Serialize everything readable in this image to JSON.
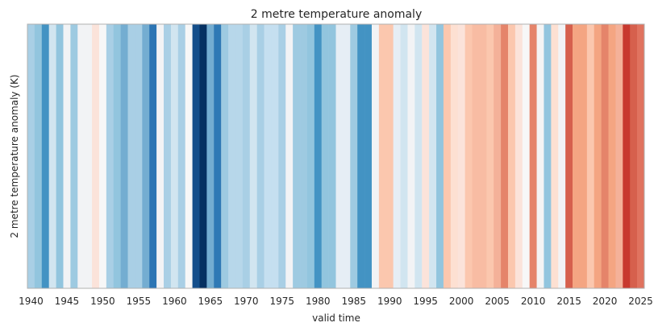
{
  "chart_data": {
    "type": "bar",
    "title": "2 metre temperature anomaly",
    "xlabel": "valid time",
    "ylabel": "2 metre temperature anomaly (K)",
    "xlim": [
      1940,
      2026
    ],
    "grid": false,
    "colormap": "RdBu_r (warming stripes)",
    "categories": [
      1940,
      1941,
      1942,
      1943,
      1944,
      1945,
      1946,
      1947,
      1948,
      1949,
      1950,
      1951,
      1952,
      1953,
      1954,
      1955,
      1956,
      1957,
      1958,
      1959,
      1960,
      1961,
      1962,
      1963,
      1964,
      1965,
      1966,
      1967,
      1968,
      1969,
      1970,
      1971,
      1972,
      1973,
      1974,
      1975,
      1976,
      1977,
      1978,
      1979,
      1980,
      1981,
      1982,
      1983,
      1984,
      1985,
      1986,
      1987,
      1988,
      1989,
      1990,
      1991,
      1992,
      1993,
      1994,
      1995,
      1996,
      1997,
      1998,
      1999,
      2000,
      2001,
      2002,
      2003,
      2004,
      2005,
      2006,
      2007,
      2008,
      2009,
      2010,
      2011,
      2012,
      2013,
      2014,
      2015,
      2016,
      2017,
      2018,
      2019,
      2020,
      2021,
      2022,
      2023,
      2024,
      2025
    ],
    "stripe_colors": [
      "#a9cfe5",
      "#92c5de",
      "#4393c3",
      "#d1e5f0",
      "#92c5de",
      "#f2f3f5",
      "#9ecae1",
      "#f2f3f5",
      "#f2f3f5",
      "#fbe3da",
      "#f7f7f7",
      "#a9cfe5",
      "#92c5de",
      "#74add1",
      "#a9cfe5",
      "#a9cfe5",
      "#74add1",
      "#2c75b4",
      "#f2f3f5",
      "#a9cfe5",
      "#d1e5f0",
      "#a9cfe5",
      "#f7f7f7",
      "#144e8a",
      "#053061",
      "#74add1",
      "#2f79b5",
      "#9ecae1",
      "#b7d7ea",
      "#b7d7ea",
      "#a9cfe5",
      "#d1e5f0",
      "#a9cfe5",
      "#c5dff0",
      "#c5dff0",
      "#a9cfe5",
      "#f2f3f5",
      "#9ecae1",
      "#9ecae1",
      "#92c5de",
      "#4393c3",
      "#92c5de",
      "#92c5de",
      "#e6eef5",
      "#e6eef5",
      "#9ecae1",
      "#4393c3",
      "#4393c3",
      "#f2f3f5",
      "#fbc7ae",
      "#fbc7ae",
      "#e6eef5",
      "#d1e5f0",
      "#f2f3f5",
      "#d1e5f0",
      "#fbe3da",
      "#d1e5f0",
      "#92c5de",
      "#fbc7ae",
      "#fde0d2",
      "#fbe3da",
      "#fbc7ae",
      "#f8bca3",
      "#f8bca3",
      "#fbc7ae",
      "#f4b199",
      "#e5846a",
      "#fbc7ae",
      "#fbe3da",
      "#f7f7f7",
      "#e5846a",
      "#f4f4f4",
      "#92c5de",
      "#fde0d2",
      "#f2f3f5",
      "#d6604d",
      "#f4a582",
      "#f4a582",
      "#fbc7ae",
      "#f4a582",
      "#e5846a",
      "#f4a582",
      "#f4b199",
      "#c8392f",
      "#d6604d",
      "#e0735f"
    ]
  }
}
